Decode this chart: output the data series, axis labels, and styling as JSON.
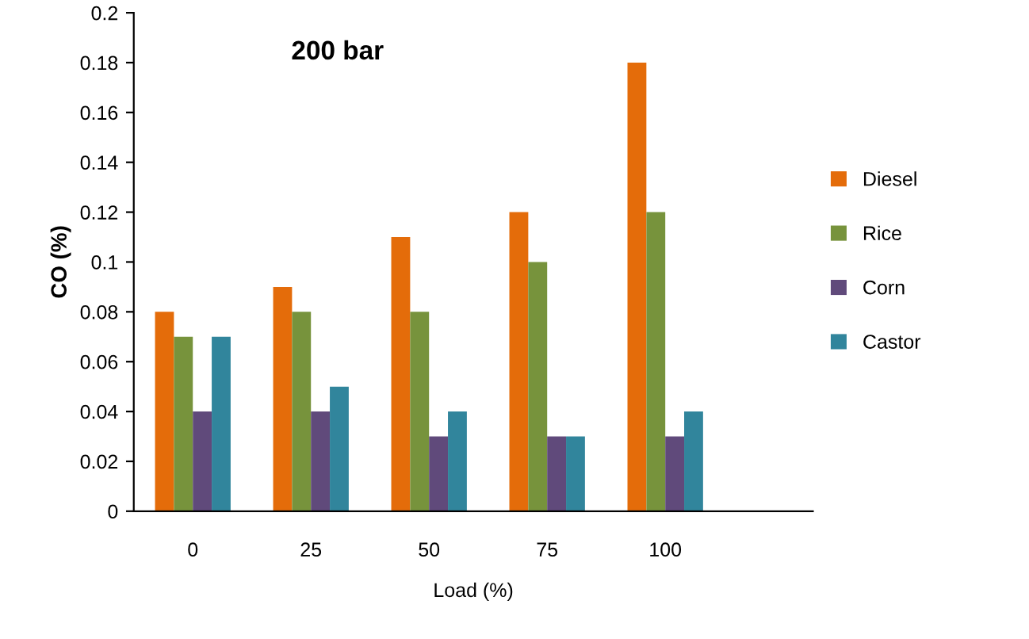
{
  "chart_data": {
    "type": "bar",
    "title": "200 bar",
    "xlabel": "Load (%)",
    "ylabel": "CO (%)",
    "categories": [
      "0",
      "25",
      "50",
      "75",
      "100"
    ],
    "series": [
      {
        "name": "Diesel",
        "color": "#e46c0a",
        "values": [
          0.08,
          0.09,
          0.11,
          0.12,
          0.18
        ]
      },
      {
        "name": "Rice",
        "color": "#77933c",
        "values": [
          0.07,
          0.08,
          0.08,
          0.1,
          0.12
        ]
      },
      {
        "name": "Corn",
        "color": "#604a7b",
        "values": [
          0.04,
          0.04,
          0.03,
          0.03,
          0.03
        ]
      },
      {
        "name": "Castor",
        "color": "#31859c",
        "values": [
          0.07,
          0.05,
          0.04,
          0.03,
          0.04
        ]
      }
    ],
    "ylim": [
      0,
      0.2
    ],
    "yticks": [
      0,
      0.02,
      0.04,
      0.06,
      0.08,
      0.1,
      0.12,
      0.14,
      0.16,
      0.18,
      0.2
    ],
    "grid": false,
    "legend": "right"
  }
}
